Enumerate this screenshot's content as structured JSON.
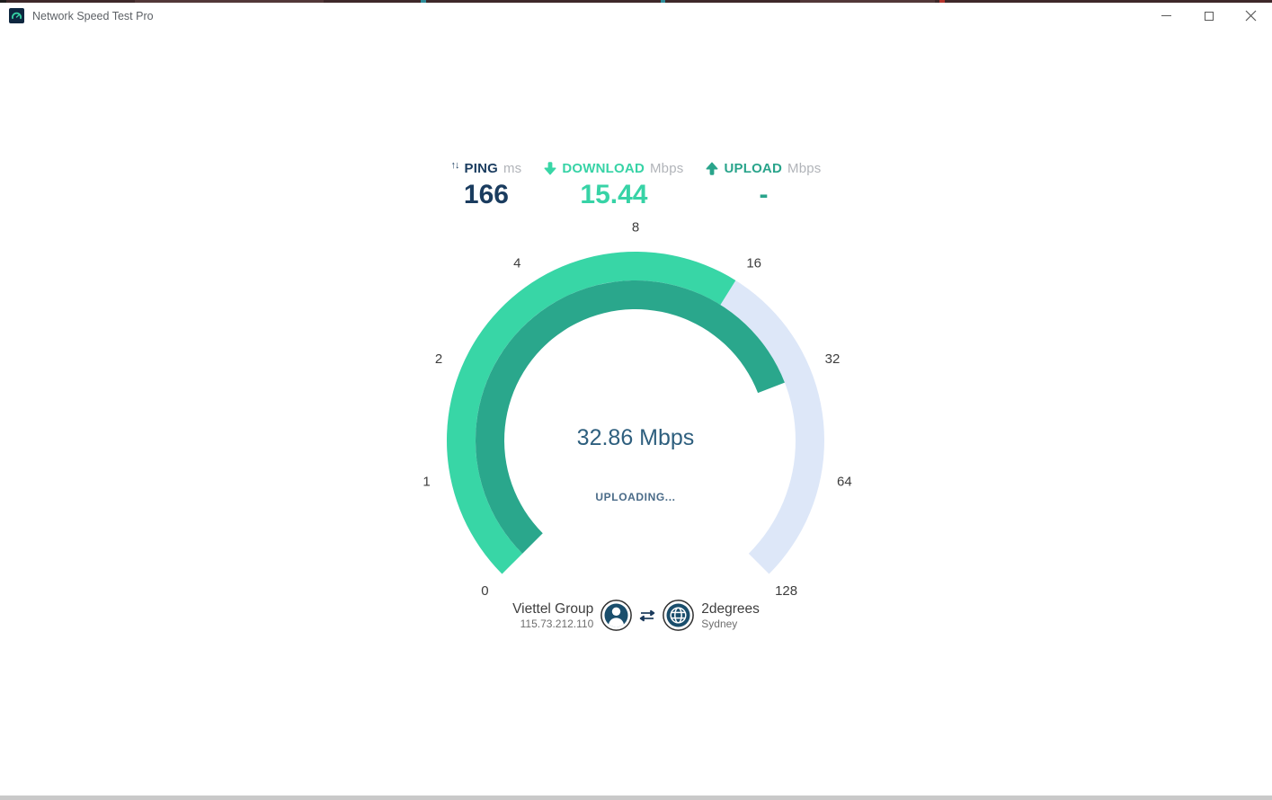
{
  "window": {
    "title": "Network Speed Test Pro"
  },
  "stats": {
    "ping": {
      "label": "PING",
      "unit": "ms",
      "value": "166"
    },
    "download": {
      "label": "DOWNLOAD",
      "unit": "Mbps",
      "value": "15.44"
    },
    "upload": {
      "label": "UPLOAD",
      "unit": "Mbps",
      "value": "-"
    }
  },
  "chart_data": {
    "type": "gauge",
    "scale_ticks": [
      0,
      1,
      2,
      4,
      8,
      16,
      32,
      64,
      128
    ],
    "scale_unit": "Mbps",
    "start_angle_deg": 225,
    "sweep_deg": 270,
    "download_value": 15.44,
    "upload_value": 32.86,
    "center_label": "32.86 Mbps",
    "status_label": "UPLOADING...",
    "colors": {
      "track": "#dde7f8",
      "download_arc": "#38d6a6",
      "upload_arc": "#2aa78c"
    }
  },
  "connection": {
    "client": {
      "isp": "Viettel Group",
      "ip": "115.73.212.110"
    },
    "server": {
      "name": "2degrees",
      "location": "Sydney"
    }
  },
  "colors": {
    "ping_text": "#1a3c5f",
    "download_text": "#37d3a6",
    "upload_text": "#29a48b",
    "center_text": "#2e5f7e"
  }
}
